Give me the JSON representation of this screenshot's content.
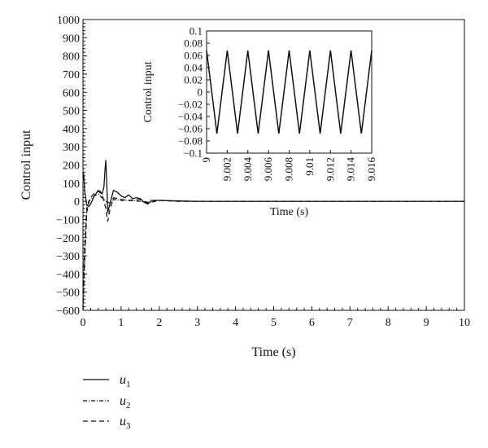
{
  "chart_data": [
    {
      "id": "main",
      "type": "line",
      "title": "",
      "xlabel": "Time (s)",
      "ylabel": "Control input",
      "xlim": [
        0,
        10
      ],
      "ylim": [
        -600,
        1000
      ],
      "xticks": [
        0,
        1,
        2,
        3,
        4,
        5,
        6,
        7,
        8,
        9,
        10
      ],
      "xtick_labels": [
        "0",
        "1",
        "2",
        "3",
        "4",
        "5",
        "6",
        "7",
        "8",
        "9",
        "10"
      ],
      "yticks": [
        -600,
        -500,
        -400,
        -300,
        -200,
        -100,
        0,
        100,
        200,
        300,
        400,
        500,
        600,
        700,
        800,
        900,
        1000
      ],
      "ytick_labels": [
        "−600",
        "−500",
        "−400",
        "−300",
        "−200",
        "−100",
        "0",
        "100",
        "200",
        "300",
        "400",
        "500",
        "600",
        "700",
        "800",
        "900",
        "1000"
      ],
      "grid": false,
      "series": [
        {
          "name": "u1",
          "style": "solid",
          "x": [
            0,
            0.02,
            0.05,
            0.1,
            0.15,
            0.2,
            0.3,
            0.4,
            0.45,
            0.5,
            0.55,
            0.58,
            0.6,
            0.62,
            0.65,
            0.7,
            0.8,
            0.9,
            1.0,
            1.1,
            1.2,
            1.3,
            1.4,
            1.5,
            1.6,
            1.7,
            1.8,
            2.0,
            2.5,
            3,
            4,
            5,
            6,
            7,
            8,
            9,
            10
          ],
          "y": [
            160,
            150,
            50,
            -20,
            -30,
            -15,
            30,
            60,
            55,
            40,
            80,
            180,
            225,
            120,
            -60,
            -20,
            60,
            50,
            30,
            20,
            35,
            15,
            20,
            15,
            -5,
            -15,
            5,
            5,
            2,
            0,
            0,
            0,
            0,
            0,
            0,
            0,
            0
          ]
        },
        {
          "name": "u2",
          "style": "dashdot",
          "x": [
            0,
            0.02,
            0.05,
            0.08,
            0.1,
            0.15,
            0.2,
            0.3,
            0.4,
            0.5,
            0.6,
            0.7,
            0.8,
            1.0,
            1.2,
            1.5,
            1.7,
            2.0,
            2.5,
            3,
            4,
            5,
            6,
            7,
            8,
            9,
            10
          ],
          "y": [
            -590,
            -400,
            -250,
            -120,
            -40,
            0,
            10,
            30,
            40,
            20,
            0,
            -10,
            10,
            5,
            5,
            0,
            -5,
            5,
            0,
            0,
            0,
            0,
            0,
            0,
            0,
            0,
            0
          ]
        },
        {
          "name": "u3",
          "style": "dashed",
          "x": [
            0,
            0.02,
            0.05,
            0.08,
            0.1,
            0.15,
            0.2,
            0.3,
            0.4,
            0.5,
            0.6,
            0.65,
            0.7,
            0.8,
            1.0,
            1.2,
            1.5,
            1.7,
            1.8,
            2.0,
            2.5,
            3,
            4,
            5,
            6,
            7,
            8,
            9,
            10
          ],
          "y": [
            -600,
            -480,
            -300,
            -150,
            -60,
            -10,
            20,
            45,
            55,
            40,
            -40,
            -110,
            -50,
            20,
            10,
            5,
            10,
            -10,
            -5,
            5,
            0,
            0,
            0,
            0,
            0,
            0,
            0,
            0,
            0
          ]
        }
      ]
    },
    {
      "id": "inset",
      "type": "line",
      "title": "",
      "xlabel": "Time (s)",
      "ylabel": "Control input",
      "xlim": [
        9,
        9.016
      ],
      "ylim": [
        -0.1,
        0.1
      ],
      "xticks": [
        9,
        9.002,
        9.004,
        9.006,
        9.008,
        9.01,
        9.012,
        9.014,
        9.016
      ],
      "xtick_labels": [
        "9",
        "9.002",
        "9.004",
        "9.006",
        "9.008",
        "9.01",
        "9.012",
        "9.014",
        "9.016"
      ],
      "yticks": [
        -0.1,
        -0.08,
        -0.06,
        -0.04,
        -0.02,
        0,
        0.02,
        0.04,
        0.06,
        0.08,
        0.1
      ],
      "ytick_labels": [
        "−0.1",
        "−0.08",
        "−0.06",
        "−0.04",
        "−0.02",
        "0",
        "0.02",
        "0.04",
        "0.06",
        "0.08",
        "0.1"
      ],
      "grid": false,
      "series": [
        {
          "style": "solid",
          "x": [
            9,
            9.001,
            9.002,
            9.003,
            9.004,
            9.005,
            9.006,
            9.007,
            9.008,
            9.009,
            9.01,
            9.011,
            9.012,
            9.013,
            9.014,
            9.015,
            9.016
          ],
          "y": [
            0.068,
            -0.068,
            0.068,
            -0.068,
            0.068,
            -0.068,
            0.068,
            -0.068,
            0.068,
            -0.068,
            0.068,
            -0.068,
            0.068,
            -0.068,
            0.068,
            -0.068,
            0.068
          ]
        }
      ]
    }
  ],
  "legend": {
    "items": [
      {
        "base": "u",
        "sub": "1",
        "style": "solid"
      },
      {
        "base": "u",
        "sub": "2",
        "style": "dashdot"
      },
      {
        "base": "u",
        "sub": "3",
        "style": "dashed"
      }
    ]
  }
}
